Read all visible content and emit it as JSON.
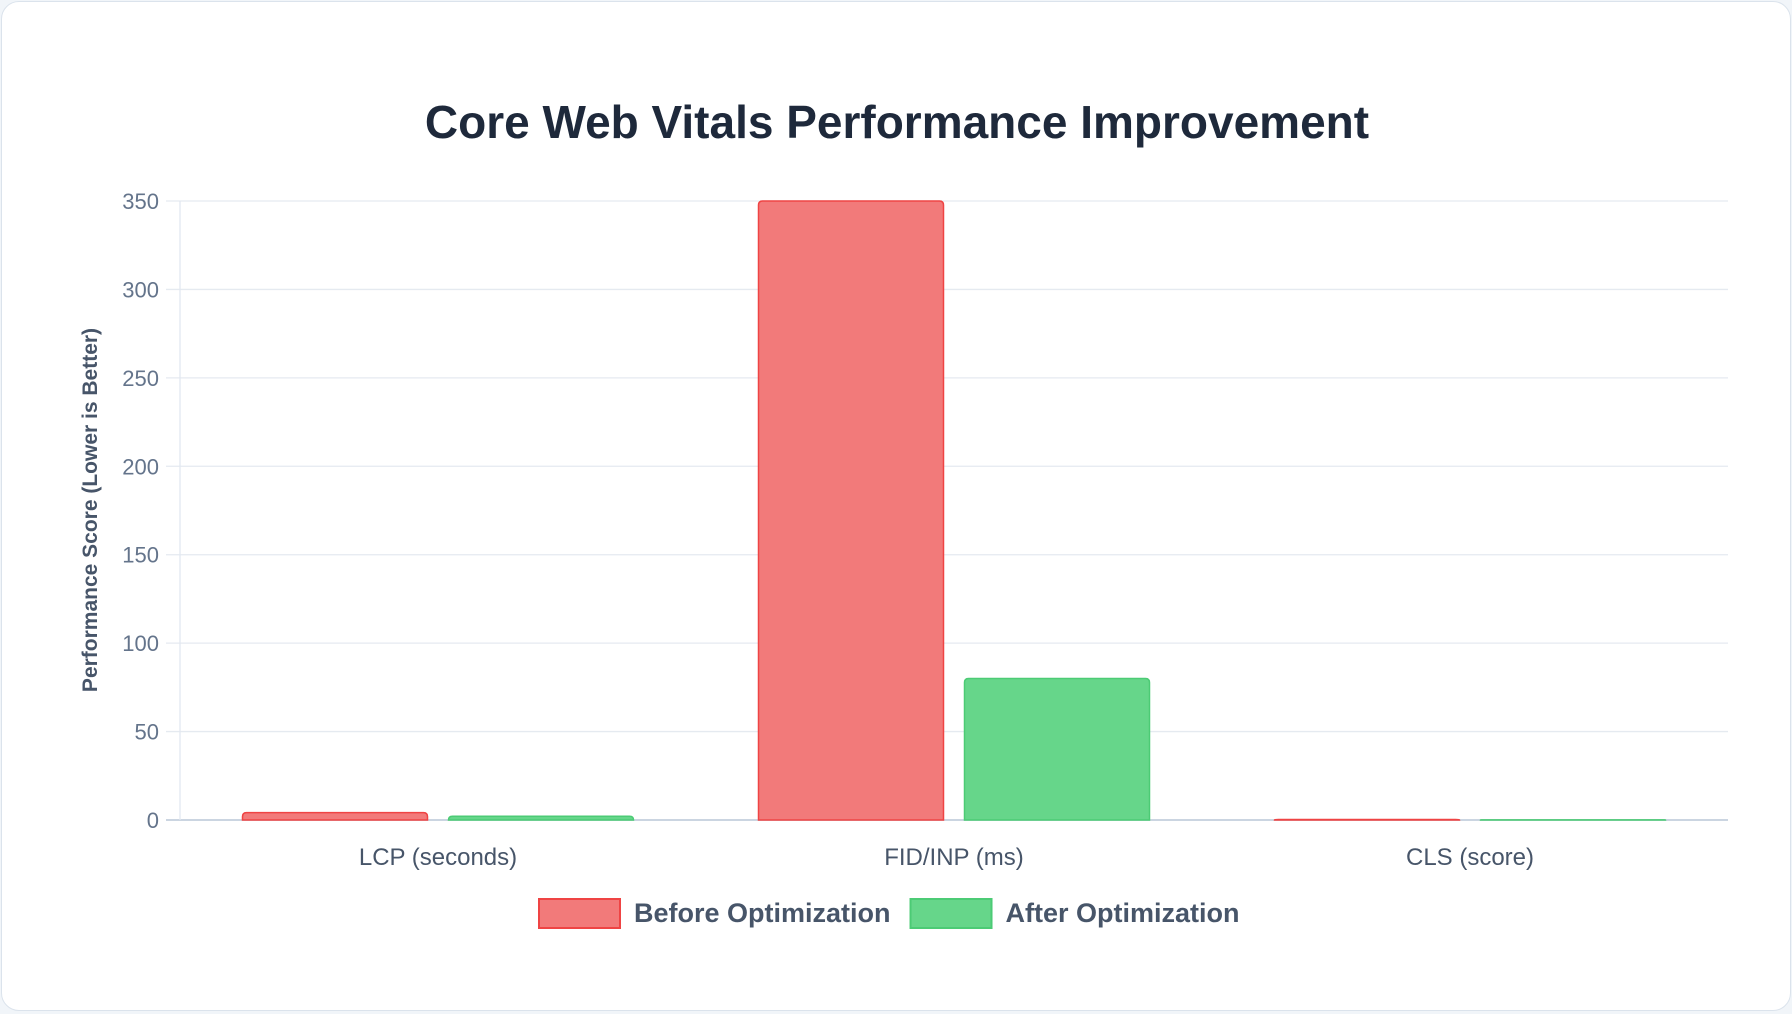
{
  "chart_data": {
    "type": "bar",
    "title": "Core Web Vitals Performance Improvement",
    "xlabel": "",
    "ylabel": "Performance Score (Lower is Better)",
    "categories": [
      "LCP (seconds)",
      "FID/INP (ms)",
      "CLS (score)"
    ],
    "series": [
      {
        "name": "Before Optimization",
        "values": [
          4.2,
          350,
          0.25
        ],
        "color": "#f27a7a",
        "border": "#ef4444"
      },
      {
        "name": "After Optimization",
        "values": [
          2.1,
          80,
          0.08
        ],
        "color": "#66d68a",
        "border": "#4ccb75"
      }
    ],
    "ylim": [
      0,
      350
    ],
    "yticks": [
      0,
      50,
      100,
      150,
      200,
      250,
      300,
      350
    ],
    "grid": true,
    "legend": "bottom"
  }
}
